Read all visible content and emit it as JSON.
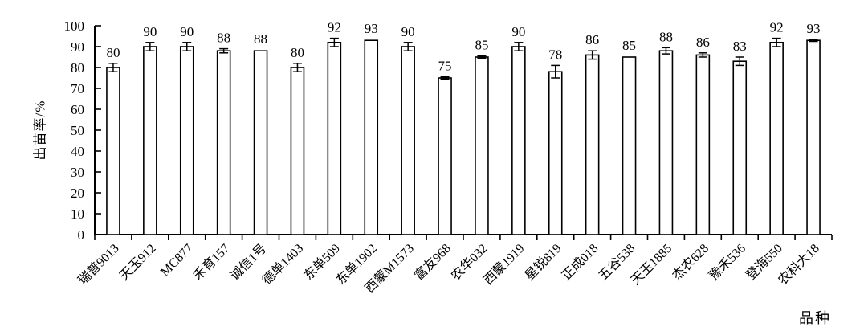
{
  "chart_data": {
    "type": "bar",
    "title": "",
    "xlabel": "品种",
    "ylabel": "出苗率/%",
    "ylim": [
      0,
      100
    ],
    "yticks": [
      0,
      10,
      20,
      30,
      40,
      50,
      60,
      70,
      80,
      90,
      100
    ],
    "grid": false,
    "legend_position": "none",
    "bar_fill": "#ffffff",
    "bar_stroke": "#000000",
    "categories": [
      "瑞普9013",
      "天玉912",
      "MC877",
      "禾育157",
      "诚信1号",
      "德单1403",
      "东单509",
      "东单1902",
      "西蒙M1573",
      "富友968",
      "农华032",
      "西蒙1919",
      "星锐819",
      "正成018",
      "五谷538",
      "天玉1885",
      "杰农628",
      "豫禾536",
      "登海550",
      "农科大18"
    ],
    "values": [
      80,
      90,
      90,
      88,
      88,
      80,
      92,
      93,
      90,
      75,
      85,
      90,
      78,
      86,
      85,
      88,
      86,
      83,
      92,
      93
    ],
    "value_labels": [
      "80",
      "90",
      "90",
      "88",
      "88",
      "80",
      "92",
      "93",
      "90",
      "75",
      "85",
      "90",
      "78",
      "86",
      "85",
      "88",
      "86",
      "83",
      "92",
      "93"
    ],
    "errors": [
      2,
      2,
      2,
      1,
      0,
      2,
      2,
      0,
      2,
      0.5,
      0.5,
      2,
      3,
      2,
      0,
      1.5,
      1,
      2,
      2,
      0.5
    ]
  }
}
